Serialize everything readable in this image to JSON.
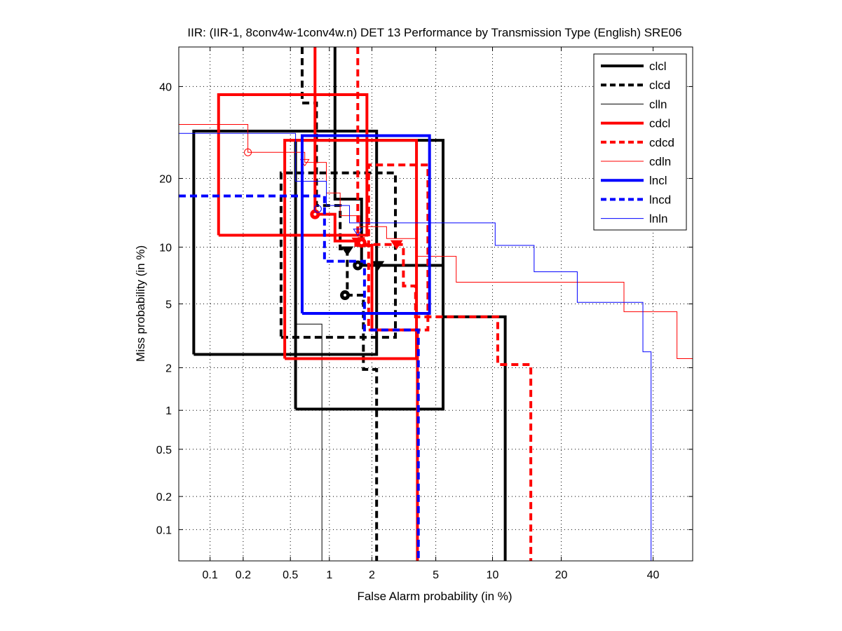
{
  "chart_data": {
    "type": "line",
    "title": "IIR: (IIR-1, 8conv4w-1conv4w.n) DET 13 Performance by Transmission Type (English) SRE06",
    "xlabel": "False Alarm probability (in %)",
    "ylabel": "Miss probability (in %)",
    "xscale": "probit",
    "yscale": "probit",
    "xlim": [
      0.05,
      50
    ],
    "ylim": [
      0.05,
      50
    ],
    "grid": true,
    "legend_position": "top-right",
    "xticks": [
      0.1,
      0.2,
      0.5,
      1,
      2,
      5,
      10,
      20,
      40
    ],
    "xtick_labels": [
      "0.1",
      "0.2",
      "0.5",
      "1",
      "2",
      "5",
      "10",
      "20",
      "40"
    ],
    "yticks": [
      0.1,
      0.2,
      0.5,
      1,
      2,
      5,
      10,
      20,
      40
    ],
    "ytick_labels": [
      "0.1",
      "0.2",
      "0.5",
      "1",
      "2",
      "5",
      "10",
      "20",
      "40"
    ],
    "series": [
      {
        "name": "clcl",
        "color": "#000000",
        "style": "solid",
        "weight": "thick",
        "curve": [
          [
            1.1,
            50
          ],
          [
            1.1,
            16.5
          ],
          [
            1.7,
            16.5
          ],
          [
            1.7,
            8.1
          ],
          [
            5.5,
            8.1
          ],
          [
            5.5,
            4.2
          ],
          [
            11.5,
            4.2
          ],
          [
            11.5,
            0.05
          ]
        ],
        "min_dcf_point": [
          1.6,
          8.1
        ],
        "actual_dcf_point": [
          2.2,
          8.1
        ],
        "confidence_box": [
          [
            0.07,
            2.45
          ],
          [
            2.15,
            29.5
          ]
        ],
        "confidence_box_2": [
          [
            0.55,
            1.02
          ],
          [
            5.5,
            27.5
          ]
        ]
      },
      {
        "name": "clcd",
        "color": "#000000",
        "style": "dashed",
        "weight": "thick",
        "curve": [
          [
            0.62,
            50
          ],
          [
            0.62,
            36
          ],
          [
            0.8,
            36
          ],
          [
            0.8,
            15.5
          ],
          [
            1.2,
            15.5
          ],
          [
            1.2,
            9.8
          ],
          [
            1.35,
            9.8
          ],
          [
            1.35,
            5.6
          ],
          [
            1.75,
            5.6
          ],
          [
            1.75,
            1.95
          ],
          [
            2.15,
            1.95
          ],
          [
            2.15,
            0.05
          ]
        ],
        "min_dcf_point": [
          1.3,
          5.6
        ],
        "actual_dcf_point": [
          1.35,
          9.6
        ],
        "confidence_box": [
          [
            0.42,
            3.15
          ],
          [
            2.85,
            21
          ]
        ]
      },
      {
        "name": "clln",
        "color": "#000000",
        "style": "solid",
        "weight": "thin",
        "curve": [
          [
            0.55,
            3.8
          ],
          [
            0.88,
            3.8
          ],
          [
            0.88,
            0.05
          ]
        ],
        "connector": [
          [
            0.51,
            11.3
          ],
          [
            0.55,
            11.3
          ]
        ]
      },
      {
        "name": "cdcl",
        "color": "#ff0000",
        "style": "solid",
        "weight": "thick",
        "curve": [
          [
            0.78,
            50
          ],
          [
            0.78,
            14.2
          ],
          [
            1.1,
            14.2
          ],
          [
            1.1,
            10.7
          ],
          [
            1.55,
            10.7
          ],
          [
            1.55,
            10.2
          ],
          [
            2.0,
            10.2
          ],
          [
            2.0,
            3.5
          ],
          [
            3.9,
            3.5
          ],
          [
            3.9,
            0.05
          ]
        ],
        "min_dcf_point": [
          0.78,
          14.2
        ],
        "actual_dcf_point": [
          1.6,
          10.6
        ],
        "confidence_box": [
          [
            0.12,
            11.4
          ],
          [
            1.85,
            38
          ]
        ],
        "confidence_box_2": [
          [
            0.45,
            2.3
          ],
          [
            3.85,
            27.5
          ]
        ]
      },
      {
        "name": "cdcd",
        "color": "#ff0000",
        "style": "dashed",
        "weight": "thick",
        "curve": [
          [
            1.6,
            50
          ],
          [
            1.6,
            11
          ],
          [
            1.75,
            11
          ],
          [
            1.75,
            10.3
          ],
          [
            3.2,
            10.3
          ],
          [
            3.2,
            6.3
          ],
          [
            3.8,
            6.3
          ],
          [
            3.8,
            4.2
          ],
          [
            10.6,
            4.2
          ],
          [
            10.6,
            2.1
          ],
          [
            15,
            2.1
          ],
          [
            15,
            0.05
          ]
        ],
        "min_dcf_point": [
          1.7,
          10.5
        ],
        "actual_dcf_point": [
          2.9,
          10.3
        ],
        "confidence_box": [
          [
            1.9,
            3.5
          ],
          [
            4.5,
            22.5
          ]
        ]
      },
      {
        "name": "cdln",
        "color": "#ff0000",
        "style": "solid",
        "weight": "thin",
        "curve": [
          [
            0.05,
            31
          ],
          [
            0.22,
            31
          ],
          [
            0.22,
            25
          ],
          [
            0.65,
            25
          ],
          [
            0.65,
            23
          ],
          [
            0.95,
            23
          ],
          [
            0.95,
            17.5
          ],
          [
            1.2,
            17.5
          ],
          [
            1.2,
            14
          ],
          [
            1.65,
            14
          ],
          [
            1.65,
            12.5
          ],
          [
            2.5,
            12.5
          ],
          [
            2.5,
            11
          ],
          [
            3.9,
            11
          ],
          [
            3.9,
            9
          ],
          [
            6.5,
            9
          ],
          [
            6.5,
            6.6
          ],
          [
            33,
            6.6
          ],
          [
            33,
            4.5
          ],
          [
            46,
            4.5
          ],
          [
            46,
            2.3
          ],
          [
            50,
            2.3
          ]
        ],
        "min_dcf_point": [
          0.22,
          25
        ],
        "actual_dcf_point": [
          0.65,
          23
        ]
      },
      {
        "name": "lncl",
        "color": "#0000ff",
        "style": "solid",
        "weight": "thick",
        "confidence_box": [
          [
            0.62,
            4.4
          ],
          [
            4.6,
            28.5
          ]
        ]
      },
      {
        "name": "lncd",
        "color": "#0000ff",
        "style": "dashed",
        "weight": "thick",
        "curve": [
          [
            0.05,
            17
          ],
          [
            0.92,
            17
          ],
          [
            0.92,
            8.5
          ],
          [
            1.78,
            8.5
          ],
          [
            1.78,
            3.5
          ],
          [
            3.95,
            3.5
          ],
          [
            3.95,
            0.05
          ]
        ]
      },
      {
        "name": "lnln",
        "color": "#0000ff",
        "style": "solid",
        "weight": "thin",
        "curve": [
          [
            0.05,
            29
          ],
          [
            0.55,
            29
          ],
          [
            0.55,
            19.5
          ],
          [
            0.95,
            19.5
          ],
          [
            0.95,
            15.5
          ],
          [
            1.4,
            15.5
          ],
          [
            1.4,
            13
          ],
          [
            10.3,
            13
          ],
          [
            10.3,
            10.2
          ],
          [
            15.5,
            10.2
          ],
          [
            15.5,
            7.5
          ],
          [
            23,
            7.5
          ],
          [
            23,
            5.1
          ],
          [
            37.5,
            5.1
          ],
          [
            37.5,
            2.55
          ],
          [
            39.5,
            2.55
          ],
          [
            39.5,
            0.05
          ]
        ],
        "min_dcf_point": [
          0.82,
          15
        ],
        "actual_dcf_point": [
          1.6,
          11.8
        ]
      }
    ]
  }
}
